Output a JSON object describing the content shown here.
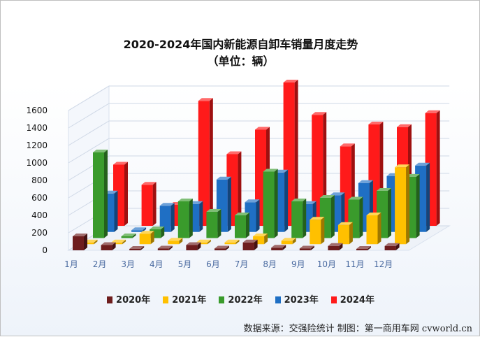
{
  "title": "2020-2024年国内新能源自卸车销量月度走势",
  "subtitle": "（单位：辆）",
  "footer": "数据来源：交强险统计  制图：第一商用车网 cvworld.cn",
  "colors": {
    "2020年": "#6e1d1d",
    "2021年": "#ffc000",
    "2022年": "#3a9b2c",
    "2023年": "#1f6fc4",
    "2024年": "#ff1a1a"
  },
  "chart_data": {
    "type": "bar",
    "categories": [
      "1月",
      "2月",
      "3月",
      "4月",
      "5月",
      "6月",
      "7月",
      "8月",
      "9月",
      "10月",
      "11月",
      "12月"
    ],
    "ylim": [
      0,
      1600
    ],
    "yticks": [
      0,
      200,
      400,
      600,
      800,
      1000,
      1200,
      1400,
      1600
    ],
    "grid": true,
    "legend_position": "bottom",
    "series": [
      {
        "name": "2020年",
        "values": [
          160,
          60,
          10,
          20,
          60,
          20,
          90,
          30,
          20,
          50,
          10,
          50
        ]
      },
      {
        "name": "2021年",
        "values": [
          20,
          20,
          120,
          40,
          20,
          20,
          90,
          40,
          280,
          220,
          330,
          880
        ]
      },
      {
        "name": "2022年",
        "values": [
          980,
          20,
          100,
          420,
          300,
          260,
          760,
          420,
          460,
          440,
          540,
          700
        ]
      },
      {
        "name": "2023年",
        "values": [
          440,
          20,
          300,
          320,
          600,
          340,
          680,
          320,
          420,
          560,
          640,
          760
        ]
      },
      {
        "name": "2024年",
        "values": [
          700,
          470,
          240,
          1430,
          820,
          1100,
          1640,
          1270,
          910,
          1160,
          1130,
          1290
        ]
      }
    ]
  }
}
